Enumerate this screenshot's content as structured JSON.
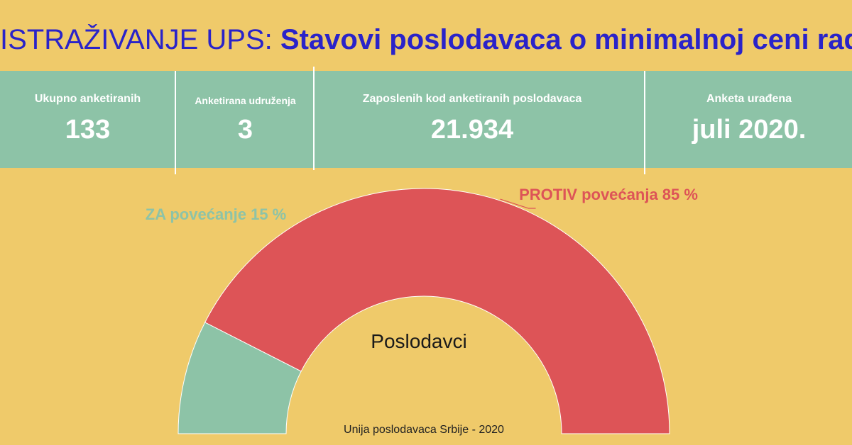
{
  "title": {
    "part1": "ISTRAŽIVANJE UPS:",
    "part2": "Stavovi poslodavaca o minimalnoj ceni rada"
  },
  "stats": [
    {
      "label": "Ukupno anketiranih",
      "value": "133"
    },
    {
      "label": "Anketirana udruženja",
      "value": "3"
    },
    {
      "label": "Zaposlenih kod anketiranih poslodavaca",
      "value": "21.934"
    },
    {
      "label": "Anketa urađena",
      "value": "juli 2020."
    }
  ],
  "colors": {
    "background": "#EFCA6A",
    "title": "#2A23C9",
    "stats_band": "#8DC3A7",
    "za": "#8DC3A7",
    "protiv": "#DD5457"
  },
  "chart_data": {
    "type": "pie",
    "variant": "half-donut",
    "center_label": "Poslodavci",
    "slices": [
      {
        "label": "ZA povećanje 15 %",
        "value": 15,
        "color": "#8DC3A7"
      },
      {
        "label": "PROTIV povećanja 85 %",
        "value": 85,
        "color": "#DD5457"
      }
    ]
  },
  "footer": "Unija poslodavaca Srbije - 2020"
}
